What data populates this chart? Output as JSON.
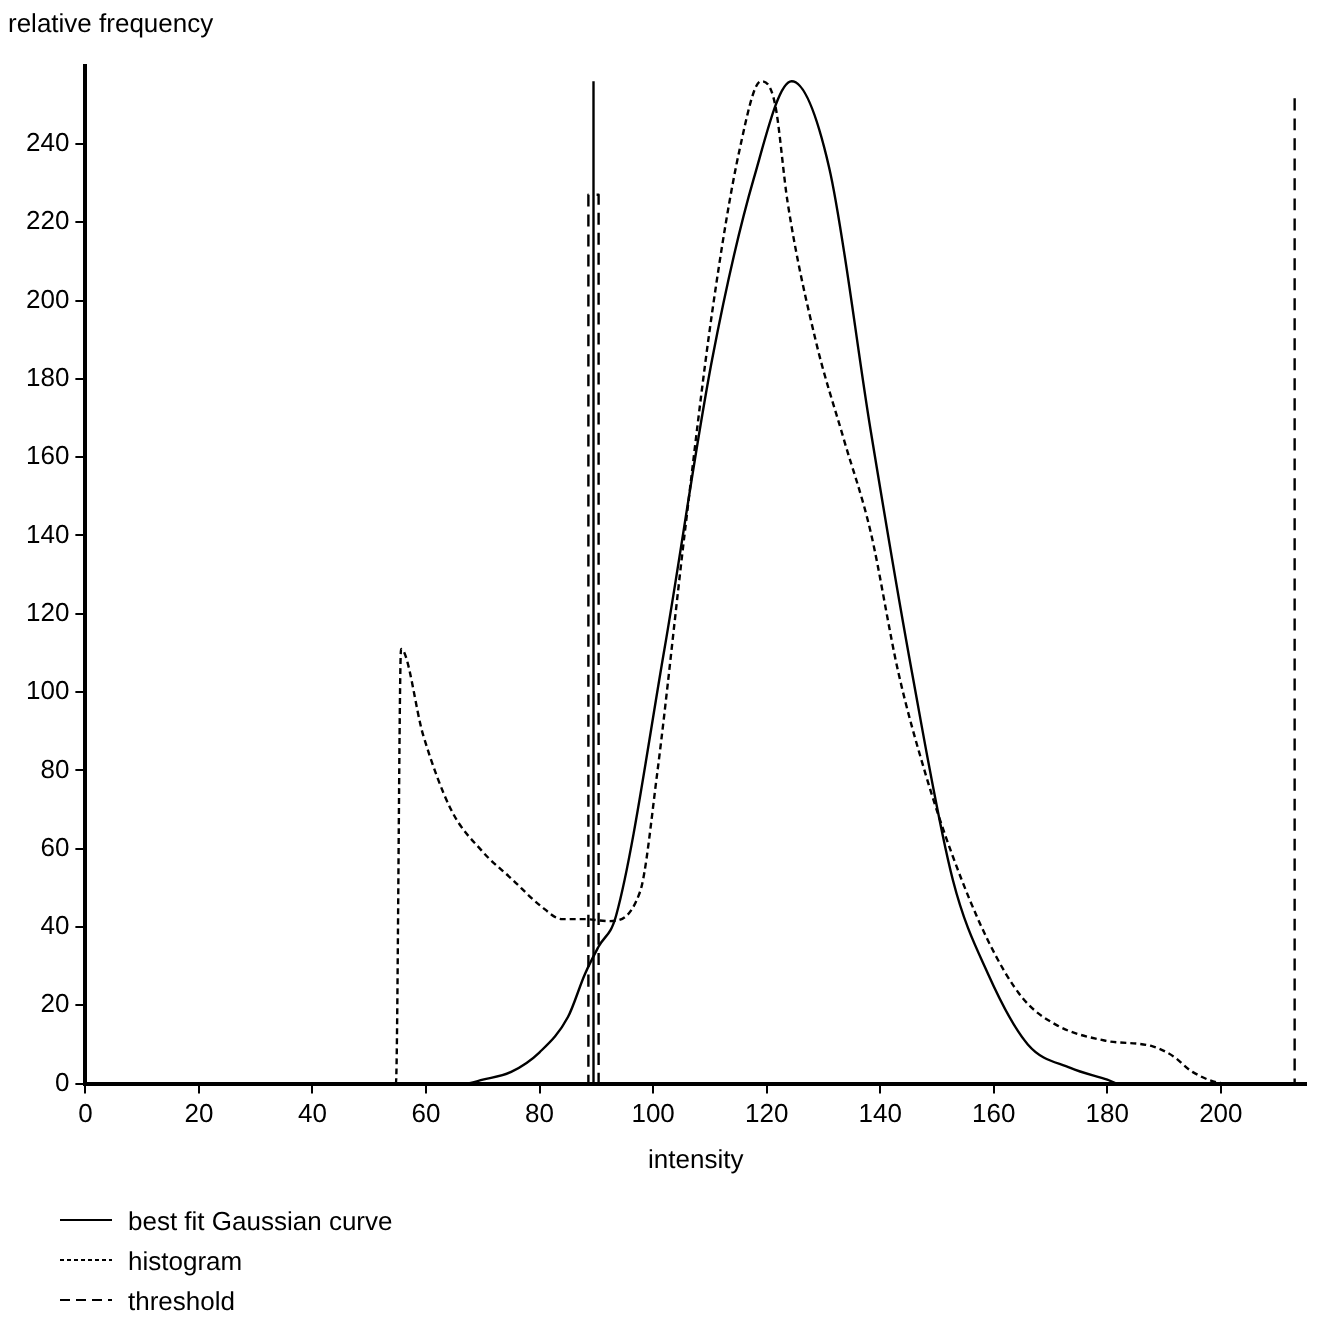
{
  "chart_data": {
    "type": "line",
    "xlabel": "intensity",
    "ylabel": "relative frequency",
    "xlim": [
      0,
      215
    ],
    "ylim": [
      0,
      260
    ],
    "xticks": [
      0,
      20,
      40,
      60,
      80,
      100,
      120,
      140,
      160,
      180,
      200
    ],
    "yticks": [
      0,
      20,
      40,
      60,
      80,
      100,
      120,
      140,
      160,
      180,
      200,
      220,
      240
    ],
    "grid": false,
    "legend": "bottom left",
    "marker": "none",
    "series": [
      {
        "name": "best fit Gaussian curve",
        "color": "#000000",
        "line_style": "solid",
        "x": [
          0,
          67,
          70,
          75,
          80,
          85,
          88,
          90.4,
          93.5,
          102,
          110.4,
          117.7,
          124.4,
          131,
          138.3,
          145.6,
          152.8,
          159,
          166,
          173.5,
          180,
          182,
          215
        ],
        "values": [
          0,
          0,
          1,
          3,
          8,
          17,
          28,
          35,
          43,
          111,
          185,
          231,
          256,
          234,
          167,
          105,
          52,
          28,
          10,
          4,
          1,
          0,
          0
        ]
      },
      {
        "name": "histogram",
        "color": "#000000",
        "line_style": "dotted",
        "x": [
          0,
          54.7,
          55.6,
          59.5,
          64.4,
          69.8,
          75.3,
          80.1,
          84,
          88,
          92.2,
          97.7,
          100.7,
          105.6,
          110.4,
          115.3,
          119,
          121.5,
          123.7,
          128.6,
          133.5,
          138.3,
          143.2,
          148,
          152.8,
          159,
          165,
          171,
          179.5,
          188,
          191.6,
          195,
          201,
          215
        ],
        "values": [
          0,
          0,
          111,
          89,
          70,
          59.5,
          52,
          45.5,
          42,
          42,
          41.5,
          49,
          79,
          141,
          197,
          239,
          256,
          250,
          225,
          190,
          165,
          141,
          105,
          79,
          58,
          36.5,
          22,
          15,
          11,
          9.5,
          7,
          3,
          0,
          0
        ]
      },
      {
        "name": "threshold",
        "color": "#000000",
        "line_style": "dashed",
        "x": [
          0,
          88.6,
          88.6,
          90.4,
          90.4,
          213,
          213
        ],
        "values": [
          0,
          0,
          227,
          227,
          0,
          0,
          253
        ]
      },
      {
        "color": "#000000",
        "line_style": "solid",
        "x": [
          89.5,
          89.5
        ],
        "values": [
          0,
          256
        ]
      }
    ]
  }
}
